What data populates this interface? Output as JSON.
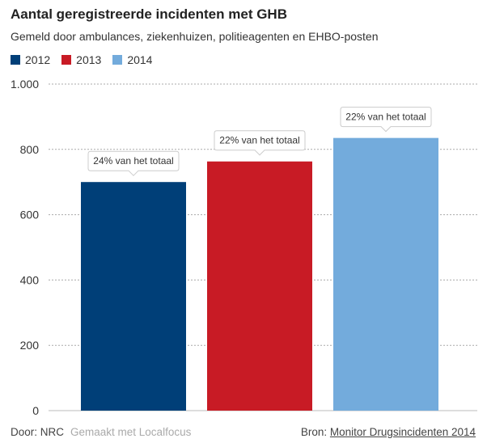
{
  "header": {
    "title": "Aantal geregistreerde incidenten met GHB",
    "subtitle": "Gemeld door ambulances, ziekenhuizen, politieagenten en EHBO-posten"
  },
  "footer": {
    "by": "Door: NRC",
    "made_with": "Gemaakt met Localfocus",
    "source_label": "Bron:",
    "source_link": "Monitor Drugsincidenten 2014"
  },
  "chart_data": {
    "type": "bar",
    "categories": [
      "2012",
      "2013",
      "2014"
    ],
    "values": [
      700,
      763,
      835
    ],
    "colors": [
      "#003f78",
      "#c81b25",
      "#73abdc"
    ],
    "annotations": [
      "24% van het totaal",
      "22% van het totaal",
      "22% van het totaal"
    ],
    "ylim": [
      0,
      1000
    ],
    "yticks": [
      0,
      200,
      400,
      600,
      800,
      1000
    ],
    "ytick_labels": [
      "0",
      "200",
      "400",
      "600",
      "800",
      "1.000"
    ],
    "grid": true,
    "legend": "top-left"
  }
}
